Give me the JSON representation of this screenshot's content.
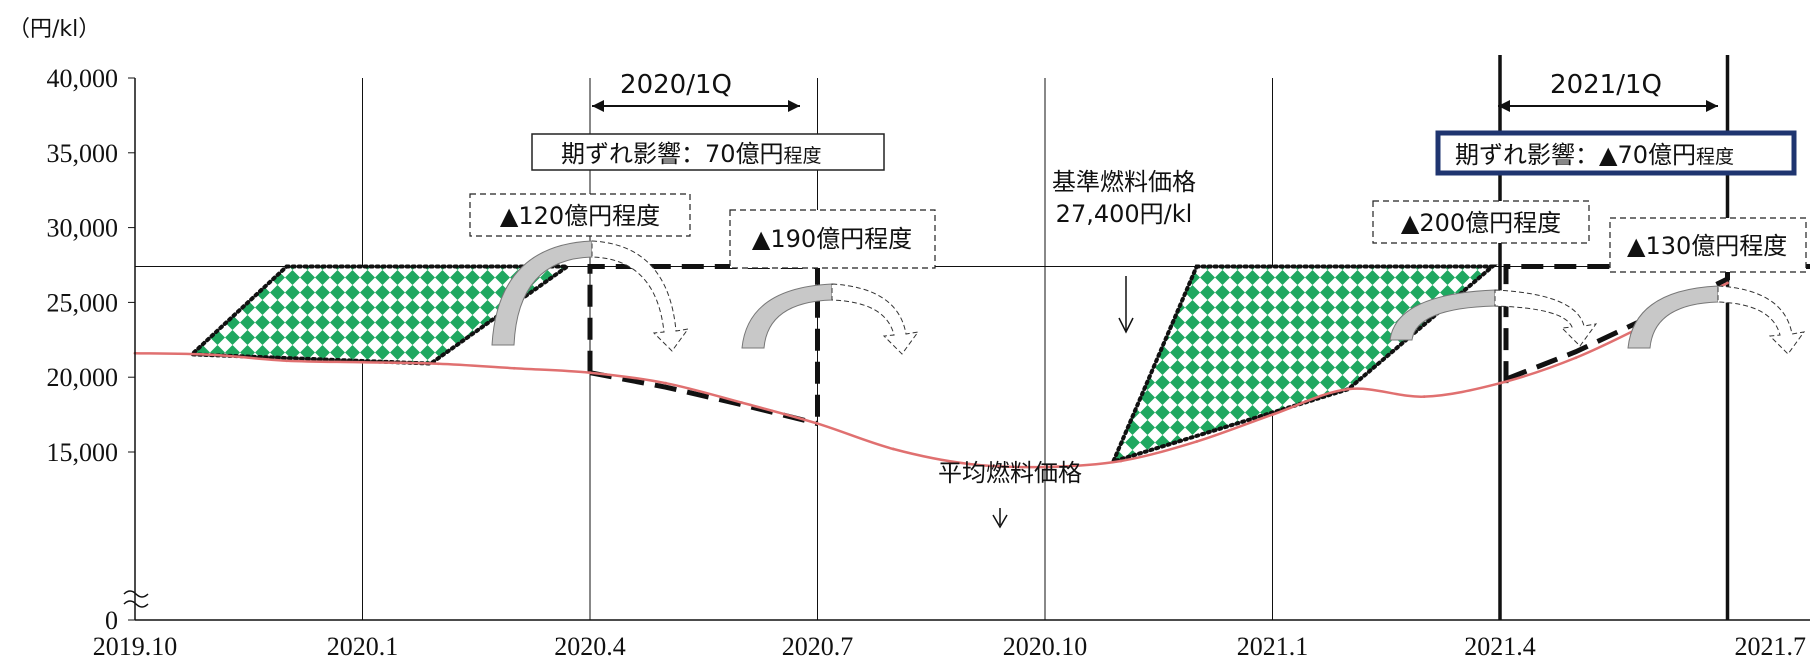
{
  "chart_data": {
    "type": "line",
    "unit_label": "（円/kl）",
    "y_ticks": [
      "40,000",
      "35,000",
      "30,000",
      "25,000",
      "20,000",
      "15,000",
      "0"
    ],
    "x_ticks": [
      "2019.10",
      "2020.1",
      "2020.4",
      "2020.7",
      "2020.10",
      "2021.1",
      "2021.4",
      "2021.7"
    ],
    "series": [
      {
        "name": "平均燃料価格",
        "x": [
          "2019.10",
          "2019.11",
          "2019.12",
          "2020.1",
          "2020.2",
          "2020.3",
          "2020.4",
          "2020.5",
          "2020.6",
          "2020.7",
          "2020.8",
          "2020.9",
          "2020.10",
          "2020.11",
          "2020.12",
          "2021.1",
          "2021.2",
          "2021.3",
          "2021.4",
          "2021.5",
          "2021.6",
          "2021.7"
        ],
        "y": [
          21600,
          21500,
          21100,
          21000,
          20900,
          20600,
          20300,
          19600,
          18300,
          16900,
          15200,
          14200,
          14000,
          14400,
          15700,
          17500,
          19200,
          18700,
          19600,
          21300,
          23700,
          26300
        ]
      }
    ],
    "reference_line": {
      "name": "基準燃料価格",
      "value": 27400
    },
    "annotations": {
      "base_price_label_1": "基準燃料価格",
      "base_price_label_2": "27,400円/kl",
      "avg_price_label": "平均燃料価格",
      "period_2020": "2020/1Q",
      "period_2021": "2021/1Q",
      "impact_2020_main": "期ずれ影響：70億円",
      "impact_2020_suffix": "程度",
      "impact_2021_main": "期ずれ影響：▲70億円",
      "impact_2021_suffix": "程度",
      "box_a": "▲120億円程度",
      "box_b": "▲190億円程度",
      "box_c": "▲200億円程度",
      "box_d": "▲130億円程度"
    },
    "colors": {
      "avg_line": "#e07070",
      "hatch_green": "#1fa860",
      "impact_2021_border": "#1f3570",
      "gray_arrow": "#c8c8c8"
    }
  }
}
